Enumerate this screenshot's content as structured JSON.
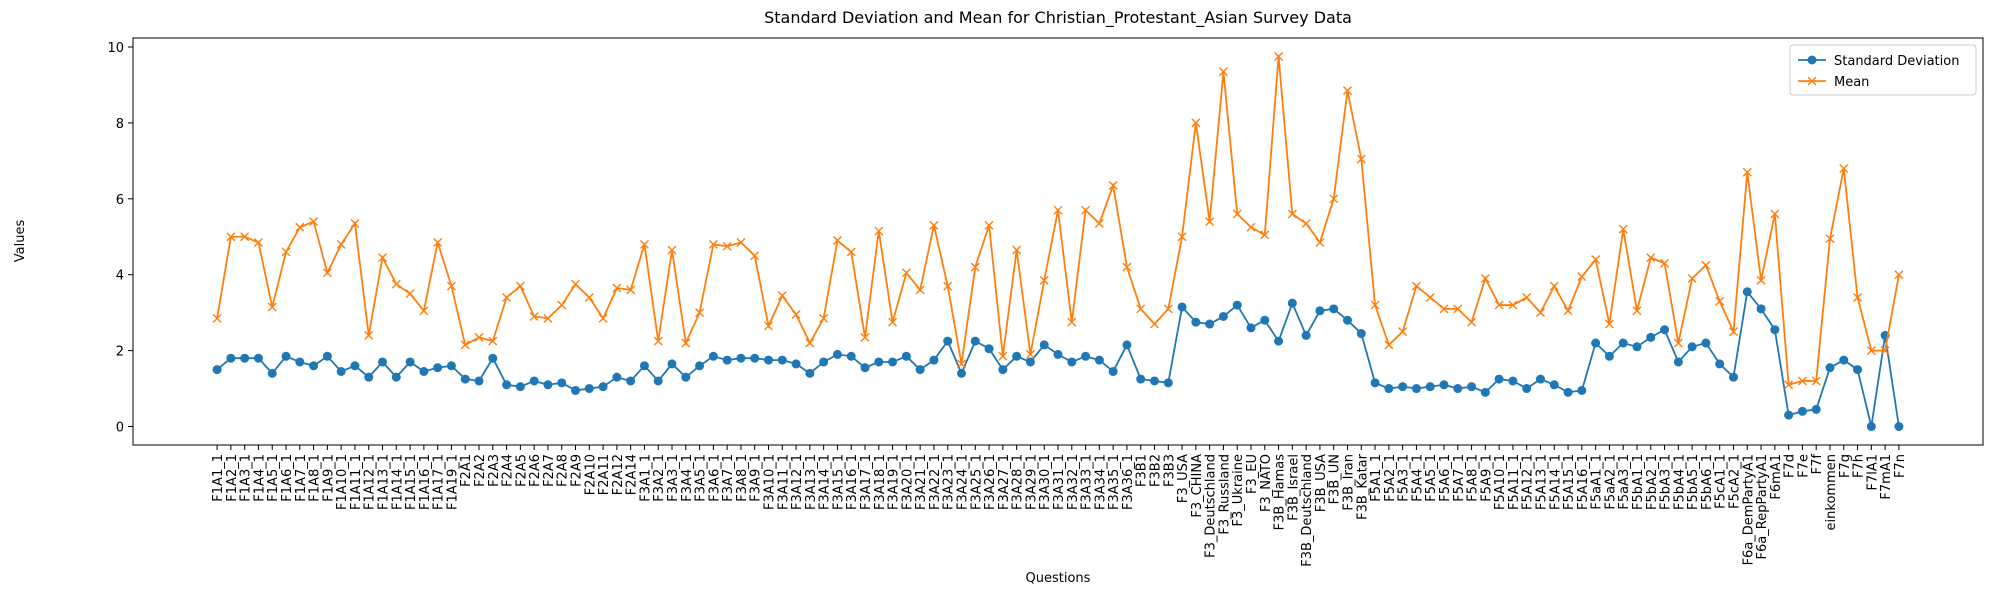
{
  "chart_data": {
    "type": "line",
    "title": "Standard Deviation and Mean for Christian_Protestant_Asian Survey Data",
    "x_label": "Questions",
    "y_label": "Values",
    "categories": [
      "F1A1_1",
      "F1A2_1",
      "F1A3_1",
      "F1A4_1",
      "F1A5_1",
      "F1A6_1",
      "F1A7_1",
      "F1A8_1",
      "F1A9_1",
      "F1A10_1",
      "F1A11_1",
      "F1A12_1",
      "F1A13_1",
      "F1A14_1",
      "F1A15_1",
      "F1A16_1",
      "F1A17_1",
      "F1A19_1",
      "F2A1",
      "F2A2",
      "F2A3",
      "F2A4",
      "F2A5",
      "F2A6",
      "F2A7",
      "F2A8",
      "F2A9",
      "F2A10",
      "F2A11",
      "F2A12",
      "F2A14",
      "F3A1_1",
      "F3A2_1",
      "F3A3_1",
      "F3A4_1",
      "F3A5_1",
      "F3A6_1",
      "F3A7_1",
      "F3A8_1",
      "F3A9_1",
      "F3A10_1",
      "F3A11_1",
      "F3A12_1",
      "F3A13_1",
      "F3A14_1",
      "F3A15_1",
      "F3A16_1",
      "F3A17_1",
      "F3A18_1",
      "F3A19_1",
      "F3A20_1",
      "F3A21_1",
      "F3A22_1",
      "F3A23_1",
      "F3A24_1",
      "F3A25_1",
      "F3A26_1",
      "F3A27_1",
      "F3A28_1",
      "F3A29_1",
      "F3A30_1",
      "F3A31_1",
      "F3A32_1",
      "F3A33_1",
      "F3A34_1",
      "F3A35_1",
      "F3A36_1",
      "F3B1",
      "F3B2",
      "F3B3",
      "F3_USA",
      "F3_CHINA",
      "F3_Deutschland",
      "F3_Russland",
      "F3_Ukraine",
      "F3_EU",
      "F3_NATO",
      "F3B_Hamas",
      "F3B_Israel",
      "F3B_Deutschland",
      "F3B_USA",
      "F3B_UN",
      "F3B_Iran",
      "F3B_Katar",
      "F5A1_1",
      "F5A2_1",
      "F5A3_1",
      "F5A4_1",
      "F5A5_1",
      "F5A6_1",
      "F5A7_1",
      "F5A8_1",
      "F5A9_1",
      "F5A10_1",
      "F5A11_1",
      "F5A12_1",
      "F5A13_1",
      "F5A14_1",
      "F5A15_1",
      "F5A16_1",
      "F5aA1_1",
      "F5aA2_1",
      "F5aA3_1",
      "F5bA1_1",
      "F5bA2_1",
      "F5bA3_1",
      "F5bA4_1",
      "F5bA5_1",
      "F5bA6_1",
      "F5cA1_1",
      "F5cA2_1",
      "F6a_DemPartyA1",
      "F6a_RepPartyA1",
      "F6mA1",
      "F7d",
      "F7e",
      "F7f",
      "einkommen",
      "F7g",
      "F7h",
      "F7lA1",
      "F7mA1",
      "F7n"
    ],
    "series": [
      {
        "name": "Standard Deviation",
        "color": "#1f77b4",
        "marker": "o",
        "values": [
          1.5,
          1.8,
          1.8,
          1.8,
          1.4,
          1.85,
          1.7,
          1.6,
          1.85,
          1.45,
          1.6,
          1.3,
          1.7,
          1.3,
          1.7,
          1.45,
          1.55,
          1.6,
          1.25,
          1.2,
          1.8,
          1.1,
          1.05,
          1.2,
          1.1,
          1.15,
          0.95,
          1.0,
          1.05,
          1.3,
          1.2,
          1.6,
          1.2,
          1.65,
          1.3,
          1.6,
          1.85,
          1.75,
          1.8,
          1.8,
          1.75,
          1.75,
          1.65,
          1.4,
          1.7,
          1.9,
          1.85,
          1.55,
          1.7,
          1.7,
          1.85,
          1.5,
          1.75,
          2.25,
          1.4,
          2.25,
          2.05,
          1.5,
          1.85,
          1.7,
          2.15,
          1.9,
          1.7,
          1.85,
          1.75,
          1.45,
          2.15,
          1.25,
          1.2,
          1.15,
          3.15,
          2.75,
          2.7,
          2.9,
          3.2,
          2.6,
          2.8,
          2.25,
          3.25,
          2.4,
          3.05,
          3.1,
          2.8,
          2.45,
          1.15,
          1.0,
          1.05,
          1.0,
          1.05,
          1.1,
          1.0,
          1.05,
          0.9,
          1.25,
          1.2,
          1.0,
          1.25,
          1.1,
          0.9,
          0.95,
          2.2,
          1.85,
          2.2,
          2.1,
          2.35,
          2.55,
          1.7,
          2.1,
          2.2,
          1.65,
          1.3,
          3.55,
          3.1,
          2.55,
          0.3,
          0.4,
          0.45,
          1.55,
          1.75,
          1.5,
          0.0,
          2.4,
          0.0
        ]
      },
      {
        "name": "Mean",
        "color": "#ff7f0e",
        "marker": "x",
        "values": [
          2.85,
          5.0,
          5.0,
          4.85,
          3.15,
          4.6,
          5.25,
          5.4,
          4.05,
          4.8,
          5.35,
          2.4,
          4.45,
          3.75,
          3.5,
          3.05,
          4.85,
          3.7,
          2.15,
          2.35,
          2.25,
          3.4,
          3.7,
          2.9,
          2.85,
          3.2,
          3.75,
          3.4,
          2.85,
          3.65,
          3.6,
          4.8,
          2.25,
          4.65,
          2.2,
          3.0,
          4.8,
          4.75,
          4.85,
          4.5,
          2.65,
          3.45,
          2.95,
          2.2,
          2.85,
          4.9,
          4.6,
          2.35,
          5.15,
          2.75,
          4.05,
          3.6,
          5.3,
          3.7,
          1.65,
          4.2,
          5.3,
          1.85,
          4.65,
          1.9,
          3.85,
          5.7,
          2.75,
          5.7,
          5.35,
          6.35,
          4.2,
          3.1,
          2.7,
          3.1,
          5.0,
          8.0,
          5.4,
          9.35,
          5.6,
          5.25,
          5.05,
          9.75,
          5.6,
          5.35,
          4.85,
          6.0,
          8.85,
          7.05,
          3.2,
          2.15,
          2.5,
          3.7,
          3.4,
          3.1,
          3.1,
          2.75,
          3.9,
          3.2,
          3.2,
          3.4,
          3.0,
          3.7,
          3.05,
          3.95,
          4.4,
          2.7,
          5.2,
          3.05,
          4.45,
          4.3,
          2.2,
          3.9,
          4.25,
          3.3,
          2.5,
          6.7,
          3.85,
          5.6,
          1.1,
          1.2,
          1.2,
          4.95,
          6.8,
          3.4,
          2.0,
          2.0,
          4.0
        ]
      }
    ],
    "ylim": [
      -0.4875,
      10.2375
    ],
    "yticks": [
      0,
      2,
      4,
      6,
      8,
      10
    ],
    "grid": false,
    "legend": "upper right"
  }
}
